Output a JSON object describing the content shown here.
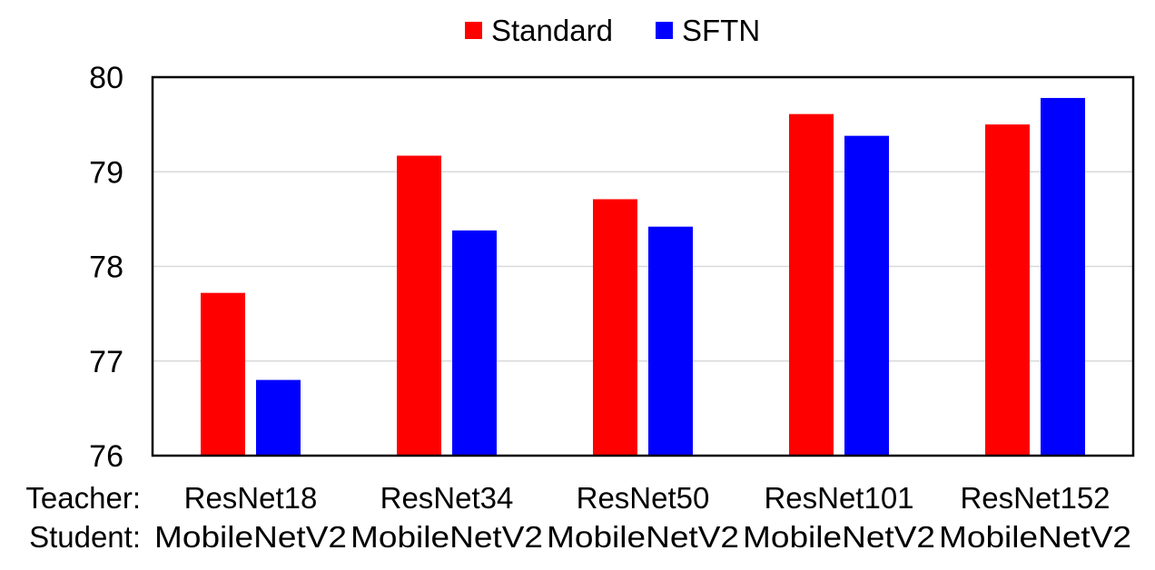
{
  "chart_data": {
    "type": "bar",
    "row_labels": [
      "Teacher:",
      "Student:"
    ],
    "categories": [
      {
        "teacher": "ResNet18",
        "student": "MobileNetV2"
      },
      {
        "teacher": "ResNet34",
        "student": "MobileNetV2"
      },
      {
        "teacher": "ResNet50",
        "student": "MobileNetV2"
      },
      {
        "teacher": "ResNet101",
        "student": "MobileNetV2"
      },
      {
        "teacher": "ResNet152",
        "student": "MobileNetV2"
      }
    ],
    "series": [
      {
        "name": "Standard",
        "color": "#ff0000",
        "values": [
          77.72,
          79.17,
          78.71,
          79.61,
          79.5
        ]
      },
      {
        "name": "SFTN",
        "color": "#0000ff",
        "values": [
          76.8,
          78.38,
          78.42,
          79.38,
          79.78
        ]
      }
    ],
    "ylim": [
      76,
      80
    ],
    "yticks": [
      "76",
      "77",
      "78",
      "79",
      "80"
    ],
    "grid": true,
    "legend_position": "top-center"
  }
}
